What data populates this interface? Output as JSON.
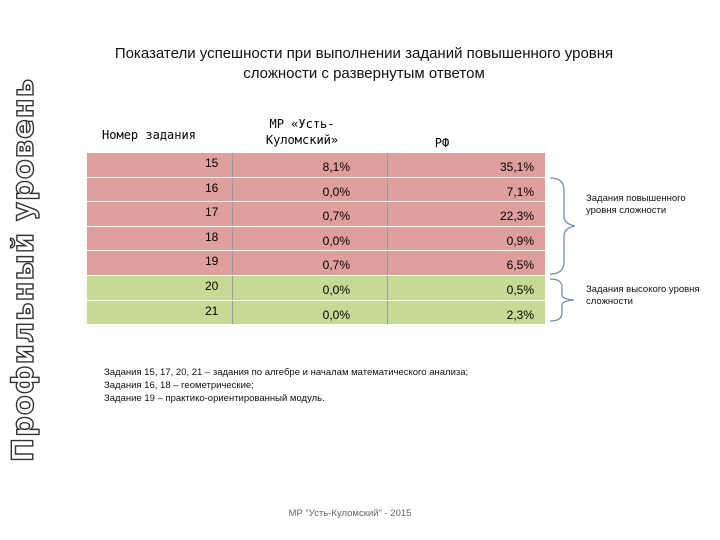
{
  "side_title": "Профильный уровень",
  "title": "Показатели успешности при выполнении заданий повышенного уровня сложности с развернутым ответом",
  "table": {
    "headers": {
      "task": "Номер задания",
      "mr": "МР «Усть-Куломский»",
      "rf": "РФ"
    },
    "rows": [
      {
        "num": "15",
        "mr": "8,1%",
        "rf": "35,1%",
        "group": "high"
      },
      {
        "num": "16",
        "mr": "0,0%",
        "rf": "7,1%",
        "group": "high"
      },
      {
        "num": "17",
        "mr": "0,7%",
        "rf": "22,3%",
        "group": "high"
      },
      {
        "num": "18",
        "mr": "0,0%",
        "rf": "0,9%",
        "group": "high"
      },
      {
        "num": "19",
        "mr": "0,7%",
        "rf": "6,5%",
        "group": "high"
      },
      {
        "num": "20",
        "mr": "0,0%",
        "rf": "0,5%",
        "group": "top"
      },
      {
        "num": "21",
        "mr": "0,0%",
        "rf": "2,3%",
        "group": "top"
      }
    ]
  },
  "labels": {
    "advanced": "Задания повышенного уровня сложности",
    "high": "Задания высокого уровня сложности"
  },
  "notes": [
    "Задания 15, 17, 20, 21 – задания по алгебре и началам математического анализа;",
    "Задания 16, 18 – геометрические;",
    "Задание 19 – практико-ориентированный модуль."
  ],
  "footer": "МР \"Усть-Куломский\" - 2015",
  "colors": {
    "advanced_row": "#df9f9d",
    "high_row": "#c7da95",
    "brace": "#6f8fb5"
  }
}
